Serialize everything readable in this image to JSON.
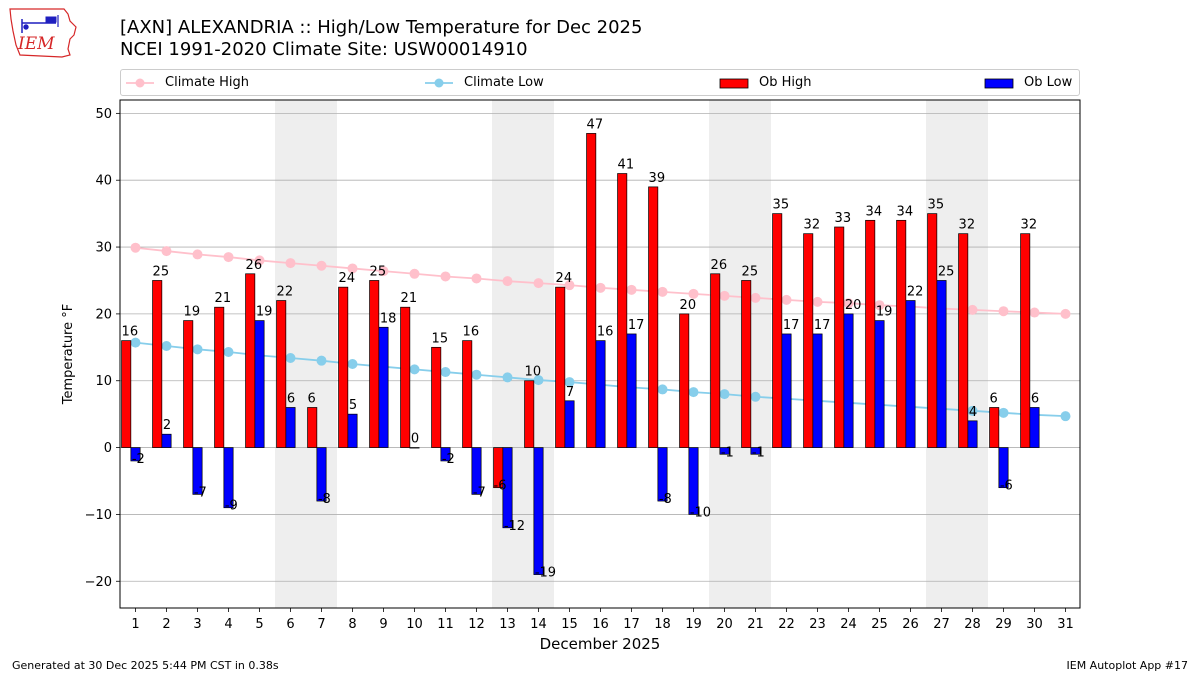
{
  "header": {
    "logo_text": "IEM",
    "title_line1": "[AXN] ALEXANDRIA :: High/Low Temperature for Dec 2025",
    "title_line2": "NCEI 1991-2020 Climate Site: USW00014910"
  },
  "footer": {
    "generated": "Generated at 30 Dec 2025 5:44 PM CST in 0.38s",
    "app": "IEM Autoplot App #17"
  },
  "colors": {
    "climate_high": "#ffc0cb",
    "climate_low": "#87ceeb",
    "ob_high": "#ff0000",
    "ob_low": "#0000ff",
    "weekend_shade": "#eeeeee",
    "grid": "#b0b0b0"
  },
  "chart_data": {
    "type": "bar",
    "title": "[AXN] ALEXANDRIA :: High/Low Temperature for Dec 2025",
    "subtitle": "NCEI 1991-2020 Climate Site: USW00014910",
    "xlabel": "December 2025",
    "ylabel": "Temperature °F",
    "ylim": [
      -24,
      52
    ],
    "yticks": [
      -20,
      -10,
      0,
      10,
      20,
      30,
      40,
      50
    ],
    "grid": true,
    "legend_position": "top",
    "categories": [
      1,
      2,
      3,
      4,
      5,
      6,
      7,
      8,
      9,
      10,
      11,
      12,
      13,
      14,
      15,
      16,
      17,
      18,
      19,
      20,
      21,
      22,
      23,
      24,
      25,
      26,
      27,
      28,
      29,
      30,
      31
    ],
    "shaded_days": [
      [
        6,
        7
      ],
      [
        13,
        14
      ],
      [
        20,
        21
      ],
      [
        27,
        28
      ]
    ],
    "series": [
      {
        "name": "Climate High",
        "kind": "line",
        "values": [
          29.9,
          29.4,
          28.9,
          28.5,
          28.0,
          27.6,
          27.2,
          26.8,
          26.4,
          26.0,
          25.6,
          25.3,
          24.9,
          24.6,
          24.3,
          23.9,
          23.6,
          23.3,
          23.0,
          22.7,
          22.4,
          22.1,
          21.8,
          21.6,
          21.3,
          21.1,
          20.8,
          20.6,
          20.4,
          20.2,
          20.0
        ]
      },
      {
        "name": "Climate Low",
        "kind": "line",
        "values": [
          15.7,
          15.2,
          14.7,
          14.3,
          13.8,
          13.4,
          13.0,
          12.5,
          12.1,
          11.7,
          11.3,
          10.9,
          10.5,
          10.1,
          9.8,
          9.4,
          9.0,
          8.7,
          8.3,
          8.0,
          7.6,
          7.3,
          7.0,
          6.7,
          6.4,
          6.1,
          5.8,
          5.5,
          5.2,
          4.9,
          4.7
        ]
      },
      {
        "name": "Ob High",
        "kind": "bar",
        "values": [
          16,
          25,
          19,
          21,
          26,
          22,
          6,
          24,
          25,
          21,
          15,
          16,
          -6,
          10,
          24,
          47,
          41,
          39,
          20,
          26,
          25,
          35,
          32,
          33,
          34,
          34,
          35,
          32,
          6,
          32,
          null
        ]
      },
      {
        "name": "Ob Low",
        "kind": "bar",
        "values": [
          -2,
          2,
          -7,
          -9,
          19,
          6,
          -8,
          5,
          18,
          0,
          -2,
          -7,
          -12,
          -19,
          7,
          16,
          17,
          -8,
          -10,
          -1,
          -1,
          17,
          17,
          20,
          19,
          22,
          25,
          4,
          -6,
          6,
          null
        ]
      }
    ]
  }
}
